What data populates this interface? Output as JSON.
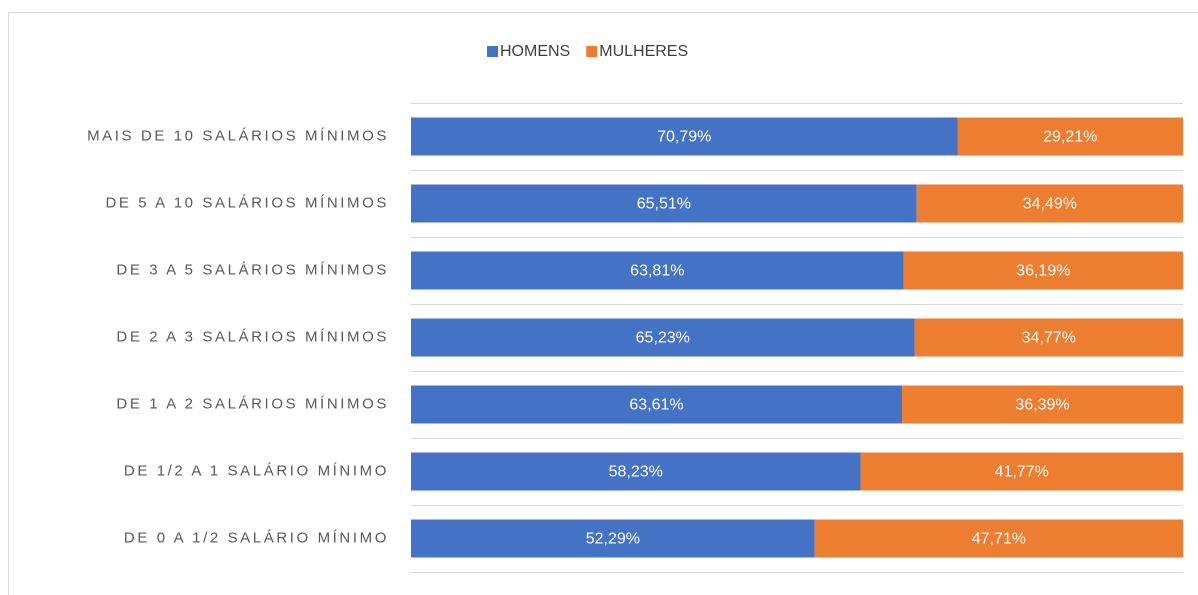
{
  "chart_data": {
    "type": "stacked_bar_horizontal",
    "categories": [
      "MAIS DE 10 SALÁRIOS MÍNIMOS",
      "DE 5 A 10 SALÁRIOS MÍNIMOS",
      "DE 3 A 5 SALÁRIOS MÍNIMOS",
      "DE 2 A 3 SALÁRIOS MÍNIMOS",
      "DE 1 A 2 SALÁRIOS MÍNIMOS",
      "DE 1/2 A 1 SALÁRIO MÍNIMO",
      "DE 0 A 1/2 SALÁRIO MÍNIMO"
    ],
    "series": [
      {
        "name": "HOMENS",
        "color": "#4472c4",
        "values": [
          70.79,
          65.51,
          63.81,
          65.23,
          63.61,
          58.23,
          52.29
        ],
        "value_labels": [
          "70,79%",
          "65,51%",
          "63,81%",
          "65,23%",
          "63,61%",
          "58,23%",
          "52,29%"
        ]
      },
      {
        "name": "MULHERES",
        "color": "#ed7d31",
        "values": [
          29.21,
          34.49,
          36.19,
          34.77,
          36.39,
          41.77,
          47.71
        ],
        "value_labels": [
          "29,21%",
          "34,49%",
          "36,19%",
          "34,77%",
          "36,39%",
          "41,77%",
          "47,71%"
        ]
      }
    ],
    "xlim": [
      0,
      100
    ],
    "legend": "top"
  }
}
